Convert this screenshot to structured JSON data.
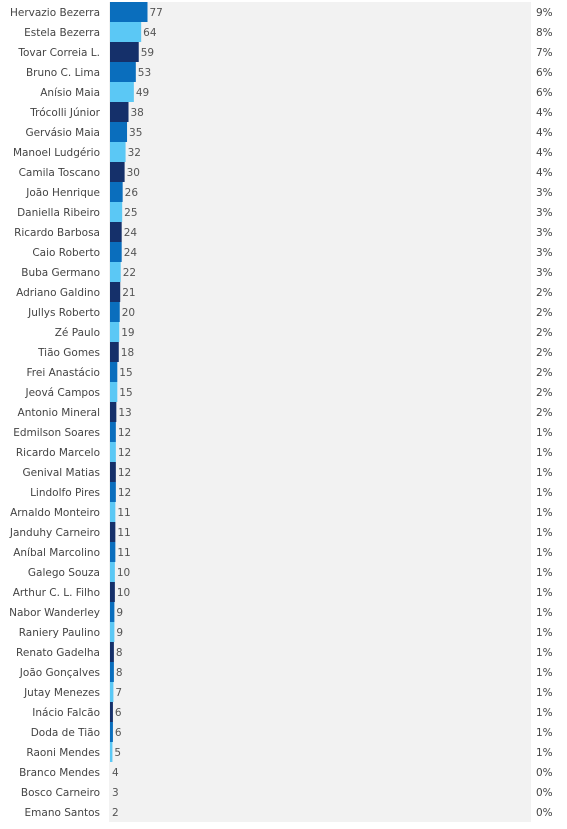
{
  "chart_data": {
    "type": "bar",
    "orientation": "horizontal",
    "title": "",
    "xlabel": "",
    "ylabel": "",
    "xlim": [
      0,
      100
    ],
    "grid": false,
    "legend": "none",
    "colors": [
      "#0a6ebd",
      "#5bc8f5",
      "#15306a"
    ],
    "categories": [
      "Hervazio Bezerra",
      "Estela Bezerra",
      "Tovar Correia L.",
      "Bruno C. Lima",
      "Anísio Maia",
      "Trócolli Júnior",
      "Gervásio Maia",
      "Manoel Ludgério",
      "Camila Toscano",
      "João Henrique",
      "Daniella Ribeiro",
      "Ricardo Barbosa",
      "Caio Roberto",
      "Buba Germano",
      "Adriano Galdino",
      "Jullys Roberto",
      "Zé Paulo",
      "Tião Gomes",
      "Frei Anastácio",
      "Jeová Campos",
      "Antonio Mineral",
      "Edmilson Soares",
      "Ricardo Marcelo",
      "Genival Matias",
      "Lindolfo Pires",
      "Arnaldo Monteiro",
      "Janduhy Carneiro",
      "Aníbal Marcolino",
      "Galego Souza",
      "Arthur C. L. Filho",
      "Nabor Wanderley",
      "Raniery Paulino",
      "Renato Gadelha",
      "João Gonçalves",
      "Jutay Menezes",
      "Inácio Falcão",
      "Doda de Tião",
      "Raoni Mendes",
      "Branco Mendes",
      "Bosco Carneiro",
      "Emano Santos"
    ],
    "values": [
      77,
      64,
      59,
      53,
      49,
      38,
      35,
      32,
      30,
      26,
      25,
      24,
      24,
      22,
      21,
      20,
      19,
      18,
      15,
      15,
      13,
      12,
      12,
      12,
      12,
      11,
      11,
      11,
      10,
      10,
      9,
      9,
      8,
      8,
      7,
      6,
      6,
      5,
      4,
      3,
      2
    ],
    "percent_labels": [
      "9%",
      "8%",
      "7%",
      "6%",
      "6%",
      "4%",
      "4%",
      "4%",
      "4%",
      "3%",
      "3%",
      "3%",
      "3%",
      "3%",
      "2%",
      "2%",
      "2%",
      "2%",
      "2%",
      "2%",
      "2%",
      "1%",
      "1%",
      "1%",
      "1%",
      "1%",
      "1%",
      "1%",
      "1%",
      "1%",
      "1%",
      "1%",
      "1%",
      "1%",
      "1%",
      "1%",
      "1%",
      "1%",
      "0%",
      "0%",
      "0%"
    ],
    "bar_colors": [
      "#0a6ebd",
      "#5bc8f5",
      "#15306a",
      "#0a6ebd",
      "#5bc8f5",
      "#15306a",
      "#0a6ebd",
      "#5bc8f5",
      "#15306a",
      "#0a6ebd",
      "#5bc8f5",
      "#15306a",
      "#0a6ebd",
      "#5bc8f5",
      "#15306a",
      "#0a6ebd",
      "#5bc8f5",
      "#15306a",
      "#0a6ebd",
      "#5bc8f5",
      "#15306a",
      "#0a6ebd",
      "#5bc8f5",
      "#15306a",
      "#0a6ebd",
      "#5bc8f5",
      "#15306a",
      "#0a6ebd",
      "#5bc8f5",
      "#15306a",
      "#0a6ebd",
      "#5bc8f5",
      "#15306a",
      "#0a6ebd",
      "#5bc8f5",
      "#15306a",
      "#0a6ebd",
      "#5bc8f5",
      "#15306a",
      "#0a6ebd",
      "#5bc8f5"
    ]
  }
}
